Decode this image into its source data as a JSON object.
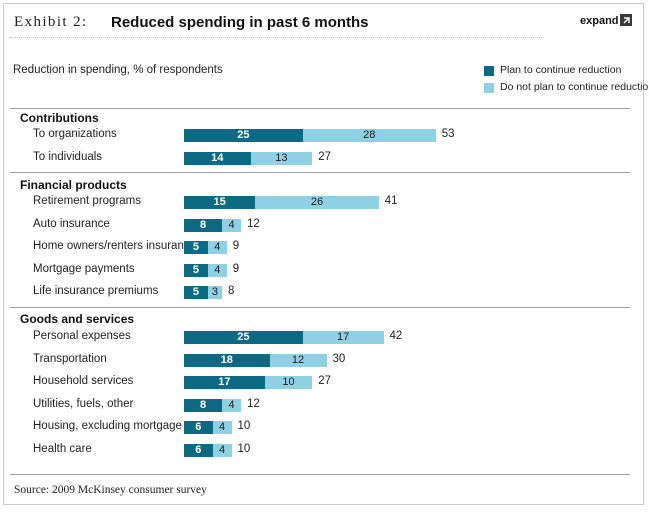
{
  "header": {
    "exhibit": "Exhibit 2:",
    "title": "Reduced spending in past 6 months",
    "expand_label": "expand"
  },
  "chart_data": {
    "type": "bar",
    "stacked": true,
    "orientation": "horizontal",
    "subtitle": "Reduction in spending, % of respondents",
    "legend_position": "top-right",
    "series": [
      {
        "name": "Plan to continue reduction",
        "color": "#0d6a82"
      },
      {
        "name": "Do not plan to continue reduction",
        "color": "#8fd0e4"
      }
    ],
    "groups": [
      {
        "title": "Contributions",
        "rows": [
          {
            "label": "To organizations",
            "plan": 25,
            "noplan": 28,
            "total": 53
          },
          {
            "label": "To individuals",
            "plan": 14,
            "noplan": 13,
            "total": 27
          }
        ]
      },
      {
        "title": "Financial products",
        "rows": [
          {
            "label": "Retirement programs",
            "plan": 15,
            "noplan": 26,
            "total": 41
          },
          {
            "label": "Auto insurance",
            "plan": 8,
            "noplan": 4,
            "total": 12
          },
          {
            "label": "Home owners/renters insurance",
            "plan": 5,
            "noplan": 4,
            "total": 9
          },
          {
            "label": "Mortgage payments",
            "plan": 5,
            "noplan": 4,
            "total": 9
          },
          {
            "label": "Life insurance premiums",
            "plan": 5,
            "noplan": 3,
            "total": 8
          }
        ]
      },
      {
        "title": "Goods and services",
        "rows": [
          {
            "label": "Personal expenses",
            "plan": 25,
            "noplan": 17,
            "total": 42
          },
          {
            "label": "Transportation",
            "plan": 18,
            "noplan": 12,
            "total": 30
          },
          {
            "label": "Household services",
            "plan": 17,
            "noplan": 10,
            "total": 27
          },
          {
            "label": "Utilities, fuels, other",
            "plan": 8,
            "noplan": 4,
            "total": 12
          },
          {
            "label": "Housing, excluding mortgage",
            "plan": 6,
            "noplan": 4,
            "total": 10
          },
          {
            "label": "Health care",
            "plan": 6,
            "noplan": 4,
            "total": 10
          }
        ]
      }
    ]
  },
  "footer": {
    "source": "Source: 2009 McKinsey consumer survey"
  }
}
